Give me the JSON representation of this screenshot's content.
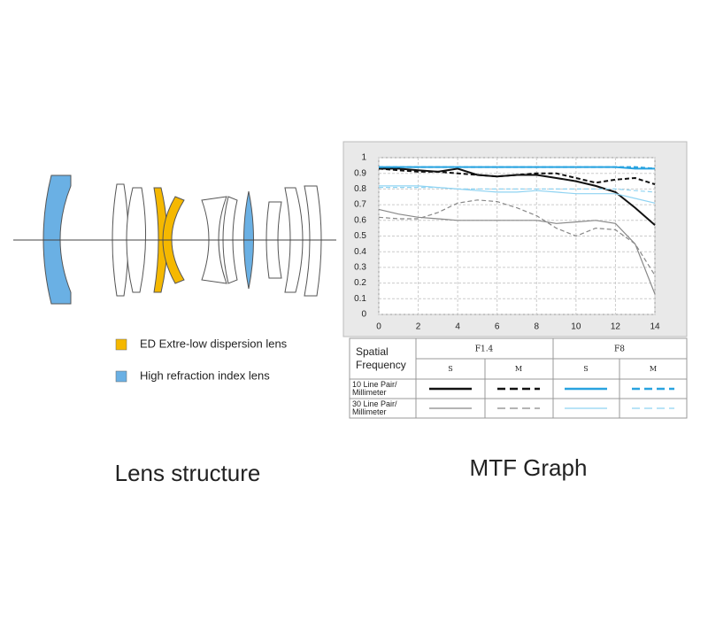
{
  "lens_structure": {
    "title": "Lens structure",
    "legend": [
      {
        "label": "ED Extre-low dispersion lens",
        "color": "#f5b800"
      },
      {
        "label": "High refraction index lens",
        "color": "#6ab0e4"
      }
    ]
  },
  "chart_data": {
    "type": "line",
    "title": "MTF Graph",
    "x": [
      0,
      1,
      2,
      3,
      4,
      5,
      6,
      7,
      8,
      9,
      10,
      11,
      12,
      13,
      14
    ],
    "xlim": [
      0,
      14
    ],
    "xticks": [
      0,
      2,
      4,
      6,
      8,
      10,
      12,
      14
    ],
    "ylim": [
      0,
      1
    ],
    "yticks": [
      0,
      0.1,
      0.2,
      0.3,
      0.4,
      0.5,
      0.6,
      0.7,
      0.8,
      0.9,
      1
    ],
    "grid": true,
    "series": [
      {
        "color": "#111111",
        "dash": false,
        "values": [
          0.93,
          0.93,
          0.92,
          0.91,
          0.93,
          0.89,
          0.88,
          0.89,
          0.89,
          0.87,
          0.85,
          0.82,
          0.78,
          0.68,
          0.57
        ]
      },
      {
        "color": "#111111",
        "dash": true,
        "values": [
          0.93,
          0.92,
          0.91,
          0.91,
          0.9,
          0.89,
          0.88,
          0.89,
          0.9,
          0.9,
          0.87,
          0.84,
          0.86,
          0.87,
          0.83
        ]
      },
      {
        "color": "#29a3e0",
        "dash": false,
        "values": [
          0.94,
          0.94,
          0.94,
          0.94,
          0.94,
          0.94,
          0.94,
          0.94,
          0.94,
          0.94,
          0.94,
          0.94,
          0.94,
          0.93,
          0.93
        ]
      },
      {
        "color": "#29a3e0",
        "dash": true,
        "values": [
          0.94,
          0.94,
          0.94,
          0.94,
          0.94,
          0.94,
          0.94,
          0.94,
          0.94,
          0.94,
          0.94,
          0.94,
          0.94,
          0.94,
          0.93
        ]
      },
      {
        "color": "#888888",
        "dash": false,
        "values": [
          0.67,
          0.64,
          0.62,
          0.61,
          0.6,
          0.6,
          0.6,
          0.6,
          0.6,
          0.58,
          0.59,
          0.6,
          0.58,
          0.45,
          0.13
        ]
      },
      {
        "color": "#888888",
        "dash": true,
        "values": [
          0.62,
          0.61,
          0.61,
          0.65,
          0.71,
          0.73,
          0.72,
          0.68,
          0.63,
          0.55,
          0.5,
          0.55,
          0.54,
          0.45,
          0.25
        ]
      },
      {
        "color": "#8fd3f2",
        "dash": false,
        "values": [
          0.82,
          0.82,
          0.82,
          0.81,
          0.8,
          0.79,
          0.78,
          0.78,
          0.79,
          0.78,
          0.77,
          0.77,
          0.77,
          0.74,
          0.71
        ]
      },
      {
        "color": "#8fd3f2",
        "dash": true,
        "values": [
          0.81,
          0.81,
          0.81,
          0.81,
          0.8,
          0.8,
          0.8,
          0.8,
          0.8,
          0.8,
          0.8,
          0.8,
          0.8,
          0.79,
          0.78
        ]
      }
    ]
  },
  "mtf_legend": {
    "header": "Spatial Frequency",
    "apertures": [
      "F1.4",
      "F8"
    ],
    "positions": [
      "S",
      "M",
      "S",
      "M"
    ],
    "rows": [
      "10 Line Pair/ Millimeter",
      "30 Line Pair/ Millimeter"
    ]
  }
}
